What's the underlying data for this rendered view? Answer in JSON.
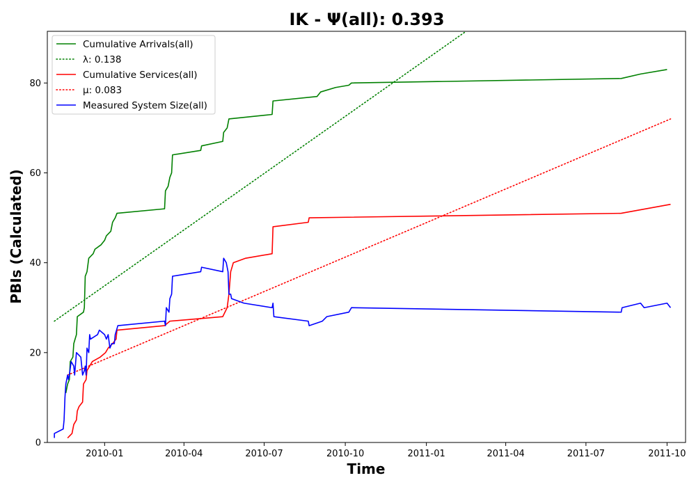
{
  "chart_data": {
    "type": "line",
    "title": "IK -  Ψ(all): 0.393",
    "xlabel": "Time",
    "ylabel": "PBIs (Calculated)",
    "xlim": [
      "2009-10-28",
      "2011-10-22"
    ],
    "ylim": [
      0,
      91.5
    ],
    "grid": false,
    "legend_position": "top-left",
    "x_ticks": [
      {
        "date": "2010-01-01",
        "label": "2010-01"
      },
      {
        "date": "2010-04-01",
        "label": "2010-04"
      },
      {
        "date": "2010-07-01",
        "label": "2010-07"
      },
      {
        "date": "2010-10-01",
        "label": "2010-10"
      },
      {
        "date": "2011-01-01",
        "label": "2011-01"
      },
      {
        "date": "2011-04-01",
        "label": "2011-04"
      },
      {
        "date": "2011-07-01",
        "label": "2011-07"
      },
      {
        "date": "2011-10-01",
        "label": "2011-10"
      }
    ],
    "y_ticks": [
      0,
      20,
      40,
      60,
      80
    ],
    "series": [
      {
        "name": "Cumulative Arrivals(all)",
        "color": "#008000",
        "style": "solid",
        "points": [
          [
            "2009-11-18",
            11
          ],
          [
            "2009-11-20",
            13
          ],
          [
            "2009-11-22",
            14
          ],
          [
            "2009-11-23",
            18
          ],
          [
            "2009-11-26",
            19
          ],
          [
            "2009-11-27",
            22
          ],
          [
            "2009-11-30",
            24
          ],
          [
            "2009-12-01",
            28
          ],
          [
            "2009-12-08",
            29
          ],
          [
            "2009-12-09",
            30
          ],
          [
            "2009-12-10",
            37
          ],
          [
            "2009-12-12",
            38
          ],
          [
            "2009-12-14",
            41
          ],
          [
            "2009-12-19",
            42
          ],
          [
            "2009-12-21",
            43
          ],
          [
            "2009-12-28",
            44
          ],
          [
            "2010-01-01",
            45
          ],
          [
            "2010-01-03",
            46
          ],
          [
            "2010-01-08",
            47
          ],
          [
            "2010-01-10",
            49
          ],
          [
            "2010-01-13",
            50
          ],
          [
            "2010-01-15",
            51
          ],
          [
            "2010-03-10",
            52
          ],
          [
            "2010-03-11",
            56
          ],
          [
            "2010-03-14",
            57
          ],
          [
            "2010-03-16",
            59
          ],
          [
            "2010-03-18",
            60
          ],
          [
            "2010-03-19",
            64
          ],
          [
            "2010-04-20",
            65
          ],
          [
            "2010-04-21",
            66
          ],
          [
            "2010-05-15",
            67
          ],
          [
            "2010-05-16",
            69
          ],
          [
            "2010-05-20",
            70
          ],
          [
            "2010-05-22",
            72
          ],
          [
            "2010-07-10",
            73
          ],
          [
            "2010-07-11",
            76
          ],
          [
            "2010-08-30",
            77
          ],
          [
            "2010-09-03",
            78
          ],
          [
            "2010-09-20",
            79
          ],
          [
            "2010-10-05",
            79.5
          ],
          [
            "2010-10-08",
            80
          ],
          [
            "2011-08-10",
            81
          ],
          [
            "2011-09-01",
            82
          ],
          [
            "2011-10-01",
            83
          ]
        ]
      },
      {
        "name": "λ: 0.138",
        "color": "#008000",
        "style": "dotted",
        "points": [
          [
            "2009-11-05",
            27
          ],
          [
            "2011-02-15",
            91.5
          ]
        ]
      },
      {
        "name": "Cumulative Services(all)",
        "color": "#ff0000",
        "style": "solid",
        "points": [
          [
            "2009-11-20",
            1
          ],
          [
            "2009-11-25",
            2
          ],
          [
            "2009-11-27",
            4
          ],
          [
            "2009-11-30",
            5
          ],
          [
            "2009-12-01",
            7
          ],
          [
            "2009-12-03",
            8
          ],
          [
            "2009-12-07",
            9
          ],
          [
            "2009-12-08",
            13
          ],
          [
            "2009-12-11",
            14
          ],
          [
            "2009-12-12",
            16
          ],
          [
            "2009-12-15",
            17
          ],
          [
            "2009-12-18",
            18
          ],
          [
            "2009-12-27",
            19
          ],
          [
            "2010-01-02",
            20
          ],
          [
            "2010-01-05",
            21
          ],
          [
            "2010-01-10",
            22
          ],
          [
            "2010-01-14",
            23
          ],
          [
            "2010-01-15",
            25
          ],
          [
            "2010-03-10",
            26
          ],
          [
            "2010-03-16",
            27
          ],
          [
            "2010-05-15",
            28
          ],
          [
            "2010-05-20",
            30
          ],
          [
            "2010-05-22",
            33
          ],
          [
            "2010-05-24",
            38
          ],
          [
            "2010-05-27",
            40
          ],
          [
            "2010-06-10",
            41
          ],
          [
            "2010-07-10",
            42
          ],
          [
            "2010-07-11",
            48
          ],
          [
            "2010-08-20",
            49
          ],
          [
            "2010-08-21",
            50
          ],
          [
            "2011-08-10",
            51
          ],
          [
            "2011-10-05",
            53
          ]
        ]
      },
      {
        "name": "μ: 0.083",
        "color": "#ff0000",
        "style": "dotted",
        "points": [
          [
            "2009-11-20",
            15
          ],
          [
            "2011-10-05",
            72
          ]
        ]
      },
      {
        "name": "Measured System Size(all)",
        "color": "#0000ff",
        "style": "solid",
        "points": [
          [
            "2009-11-05",
            1
          ],
          [
            "2009-11-05",
            2
          ],
          [
            "2009-11-15",
            3
          ],
          [
            "2009-11-16",
            5
          ],
          [
            "2009-11-17",
            10
          ],
          [
            "2009-11-18",
            13
          ],
          [
            "2009-11-19",
            14
          ],
          [
            "2009-11-20",
            15
          ],
          [
            "2009-11-21",
            14
          ],
          [
            "2009-11-22",
            15
          ],
          [
            "2009-11-24",
            18
          ],
          [
            "2009-11-27",
            17
          ],
          [
            "2009-11-28",
            15
          ],
          [
            "2009-11-30",
            20
          ],
          [
            "2009-12-05",
            19
          ],
          [
            "2009-12-06",
            17
          ],
          [
            "2009-12-07",
            15
          ],
          [
            "2009-12-09",
            16
          ],
          [
            "2009-12-10",
            17
          ],
          [
            "2009-12-11",
            15
          ],
          [
            "2009-12-12",
            21
          ],
          [
            "2009-12-14",
            20
          ],
          [
            "2009-12-15",
            24
          ],
          [
            "2009-12-16",
            23
          ],
          [
            "2009-12-24",
            24
          ],
          [
            "2009-12-26",
            25
          ],
          [
            "2010-01-01",
            24
          ],
          [
            "2010-01-03",
            23
          ],
          [
            "2010-01-05",
            24
          ],
          [
            "2010-01-07",
            21
          ],
          [
            "2010-01-09",
            22
          ],
          [
            "2010-01-12",
            22
          ],
          [
            "2010-01-13",
            24
          ],
          [
            "2010-01-16",
            26
          ],
          [
            "2010-03-10",
            27
          ],
          [
            "2010-03-11",
            26
          ],
          [
            "2010-03-12",
            30
          ],
          [
            "2010-03-15",
            29
          ],
          [
            "2010-03-16",
            32
          ],
          [
            "2010-03-18",
            33
          ],
          [
            "2010-03-19",
            37
          ],
          [
            "2010-04-20",
            38
          ],
          [
            "2010-04-21",
            39
          ],
          [
            "2010-05-15",
            38
          ],
          [
            "2010-05-16",
            41
          ],
          [
            "2010-05-19",
            40
          ],
          [
            "2010-05-21",
            38
          ],
          [
            "2010-05-22",
            33
          ],
          [
            "2010-05-24",
            33
          ],
          [
            "2010-05-25",
            32
          ],
          [
            "2010-06-08",
            31
          ],
          [
            "2010-07-10",
            30
          ],
          [
            "2010-07-11",
            31
          ],
          [
            "2010-07-12",
            28
          ],
          [
            "2010-08-20",
            27
          ],
          [
            "2010-08-21",
            26
          ],
          [
            "2010-09-05",
            27
          ],
          [
            "2010-09-10",
            28
          ],
          [
            "2010-10-05",
            29
          ],
          [
            "2010-10-08",
            30
          ],
          [
            "2011-08-10",
            29
          ],
          [
            "2011-08-11",
            30
          ],
          [
            "2011-09-01",
            31
          ],
          [
            "2011-09-05",
            30
          ],
          [
            "2011-10-01",
            31
          ],
          [
            "2011-10-05",
            30
          ]
        ]
      }
    ]
  }
}
